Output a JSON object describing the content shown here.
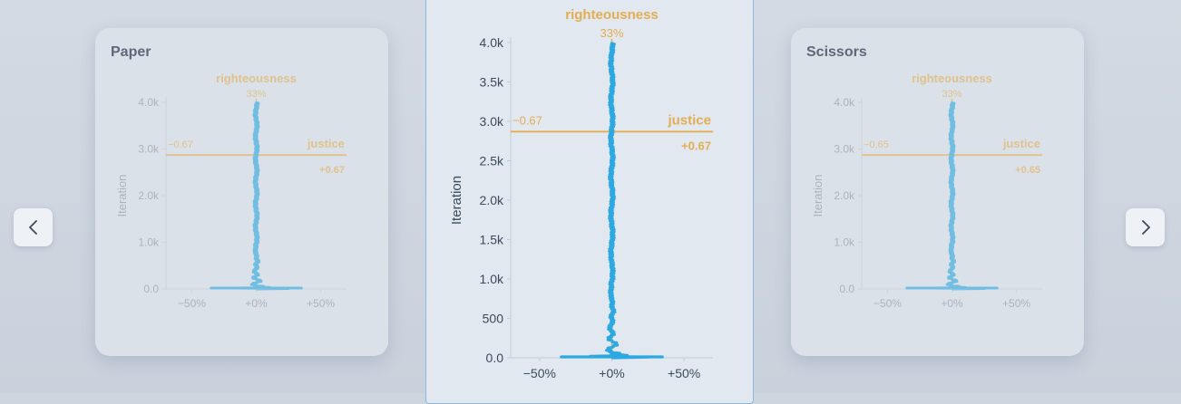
{
  "carousel": {
    "prev_icon": "chevron-left-icon",
    "next_icon": "chevron-right-icon"
  },
  "colors": {
    "trace": "#2ea8e0",
    "reference": "#e3ad52",
    "axis_text_side": "#8a95a3",
    "axis_text_center": "#3d4a5c"
  },
  "chart_data": [
    {
      "id": "paper",
      "title": "Paper",
      "type": "line",
      "ylabel": "Iteration",
      "xlabel": "",
      "yticks": [
        "0.0",
        "1.0k",
        "2.0k",
        "3.0k",
        "4.0k"
      ],
      "xticks": [
        "−50%",
        "+0%",
        "+50%"
      ],
      "ylim": [
        0,
        4000
      ],
      "xlim": [
        -0.7,
        0.7
      ],
      "vertical_ref": {
        "label": "righteousness",
        "value_label": "33%",
        "x": 0
      },
      "horizontal_ref": {
        "label": "justice",
        "y": 2870,
        "left_label": "−0.67",
        "right_label": "+0.67"
      }
    },
    {
      "id": "center",
      "title": "",
      "type": "line",
      "ylabel": "Iteration",
      "xlabel": "",
      "yticks": [
        "0.0",
        "500",
        "1.0k",
        "1.5k",
        "2.0k",
        "2.5k",
        "3.0k",
        "3.5k",
        "4.0k"
      ],
      "xticks": [
        "−50%",
        "+0%",
        "+50%"
      ],
      "ylim": [
        0,
        4000
      ],
      "xlim": [
        -0.7,
        0.7
      ],
      "vertical_ref": {
        "label": "righteousness",
        "value_label": "33%",
        "x": 0
      },
      "horizontal_ref": {
        "label": "justice",
        "y": 2870,
        "left_label": "−0.67",
        "right_label": "+0.67"
      }
    },
    {
      "id": "scissors",
      "title": "Scissors",
      "type": "line",
      "ylabel": "Iteration",
      "xlabel": "",
      "yticks": [
        "0.0",
        "1.0k",
        "2.0k",
        "3.0k",
        "4.0k"
      ],
      "xticks": [
        "−50%",
        "+0%",
        "+50%"
      ],
      "ylim": [
        0,
        4000
      ],
      "xlim": [
        -0.7,
        0.7
      ],
      "vertical_ref": {
        "label": "righteousness",
        "value_label": "33%",
        "x": 0
      },
      "horizontal_ref": {
        "label": "justice",
        "y": 2870,
        "left_label": "−0.65",
        "right_label": "+0.65"
      }
    }
  ]
}
